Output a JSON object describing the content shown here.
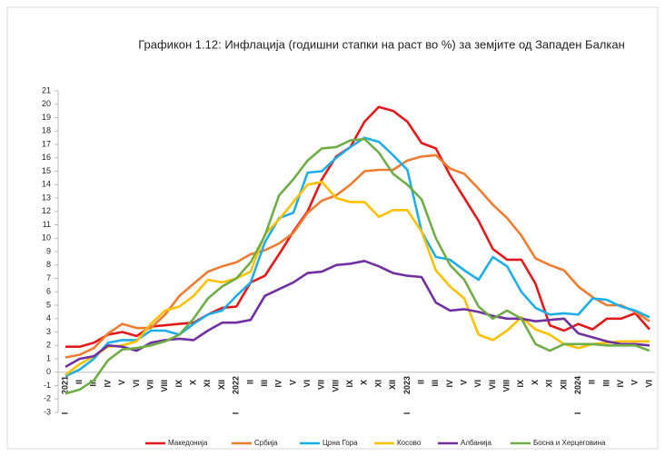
{
  "chart_data": {
    "type": "line",
    "title": "Графикон 1.12: Инфлација (годишни стапки на раст во %) за земјите од Западен Балкан",
    "categories": [
      "I",
      "II",
      "III",
      "IV",
      "V",
      "VI",
      "VII",
      "VIII",
      "IX",
      "X",
      "XI",
      "XII",
      "I",
      "II",
      "III",
      "IV",
      "V",
      "VI",
      "VII",
      "VIII",
      "IX",
      "X",
      "XI",
      "XII",
      "I",
      "II",
      "III",
      "IV",
      "V",
      "VI",
      "VII",
      "VIII",
      "IX",
      "X",
      "XI",
      "XII",
      "I",
      "II",
      "III",
      "IV",
      "V",
      "VI"
    ],
    "years": [
      "2021",
      "2022",
      "2023",
      "2024"
    ],
    "ylim": [
      -3,
      21
    ],
    "yticks": [
      -3,
      -2,
      -1,
      0,
      1,
      2,
      3,
      4,
      5,
      6,
      7,
      8,
      9,
      10,
      11,
      12,
      13,
      14,
      15,
      16,
      17,
      18,
      19,
      20,
      21
    ],
    "grid": false,
    "legend": "bottom",
    "series": [
      {
        "name": "Македонија",
        "color": "#e31a1c",
        "values": [
          1.9,
          1.9,
          2.2,
          2.8,
          3.0,
          2.7,
          3.4,
          3.5,
          3.6,
          3.7,
          4.3,
          4.8,
          4.9,
          6.7,
          7.2,
          8.8,
          10.5,
          12.0,
          14.4,
          16.1,
          16.8,
          18.7,
          19.8,
          19.5,
          18.7,
          17.1,
          16.7,
          14.7,
          13.0,
          11.3,
          9.2,
          8.4,
          8.4,
          6.6,
          3.5,
          3.1,
          3.6,
          3.2,
          4.0,
          4.0,
          4.4,
          3.2
        ]
      },
      {
        "name": "Србија",
        "color": "#ed7d31",
        "values": [
          1.1,
          1.3,
          1.8,
          2.9,
          3.6,
          3.3,
          3.3,
          4.3,
          5.7,
          6.6,
          7.5,
          7.9,
          8.2,
          8.8,
          9.1,
          9.6,
          10.4,
          11.9,
          12.8,
          13.2,
          14.0,
          15.0,
          15.1,
          15.1,
          15.8,
          16.1,
          16.2,
          15.2,
          14.8,
          13.7,
          12.5,
          11.5,
          10.2,
          8.5,
          8.0,
          7.6,
          6.4,
          5.6,
          5.0,
          5.0,
          4.5,
          3.8
        ]
      },
      {
        "name": "Црна Гора",
        "color": "#1eaee8",
        "values": [
          -0.3,
          0.2,
          1.0,
          2.2,
          2.4,
          2.4,
          3.1,
          3.1,
          2.8,
          3.6,
          4.3,
          4.6,
          5.7,
          6.7,
          9.7,
          11.5,
          11.9,
          14.9,
          15.0,
          16.0,
          16.8,
          17.5,
          17.2,
          16.2,
          15.1,
          10.5,
          8.6,
          8.4,
          7.6,
          6.9,
          8.6,
          7.9,
          6.0,
          4.8,
          4.3,
          4.4,
          4.3,
          5.5,
          5.4,
          4.9,
          4.6,
          4.1
        ]
      },
      {
        "name": "Косово",
        "color": "#ffc000",
        "values": [
          -0.2,
          0.6,
          1.2,
          1.9,
          2.0,
          2.3,
          3.6,
          4.6,
          4.9,
          5.7,
          6.9,
          6.7,
          7.0,
          7.5,
          10.3,
          11.4,
          12.7,
          14.0,
          14.2,
          13.0,
          12.7,
          12.7,
          11.6,
          12.1,
          12.1,
          10.5,
          7.6,
          6.4,
          5.5,
          2.8,
          2.4,
          3.1,
          4.1,
          3.2,
          2.8,
          2.1,
          1.8,
          2.1,
          2.2,
          2.3,
          2.3,
          2.3
        ]
      },
      {
        "name": "Албанија",
        "color": "#7030a0",
        "values": [
          0.4,
          1.0,
          1.2,
          2.0,
          1.9,
          1.6,
          2.2,
          2.4,
          2.5,
          2.4,
          3.1,
          3.7,
          3.7,
          3.9,
          5.7,
          6.2,
          6.7,
          7.4,
          7.5,
          8.0,
          8.1,
          8.3,
          7.9,
          7.4,
          7.2,
          7.1,
          5.2,
          4.6,
          4.7,
          4.5,
          4.2,
          4.0,
          4.0,
          3.8,
          3.9,
          4.0,
          2.9,
          2.6,
          2.3,
          2.1,
          2.1,
          2.0
        ]
      },
      {
        "name": "Босна и Херцеговина",
        "color": "#70ad47",
        "values": [
          -1.6,
          -1.3,
          -0.6,
          0.9,
          1.7,
          1.8,
          2.0,
          2.3,
          2.8,
          4.0,
          5.5,
          6.4,
          7.0,
          8.2,
          10.2,
          13.2,
          14.4,
          15.8,
          16.7,
          16.8,
          17.3,
          17.4,
          16.4,
          14.8,
          14.0,
          12.9,
          10.0,
          8.0,
          6.9,
          4.9,
          4.0,
          4.6,
          4.0,
          2.1,
          1.6,
          2.1,
          2.1,
          2.1,
          2.0,
          2.0,
          2.0,
          1.6
        ]
      }
    ]
  }
}
